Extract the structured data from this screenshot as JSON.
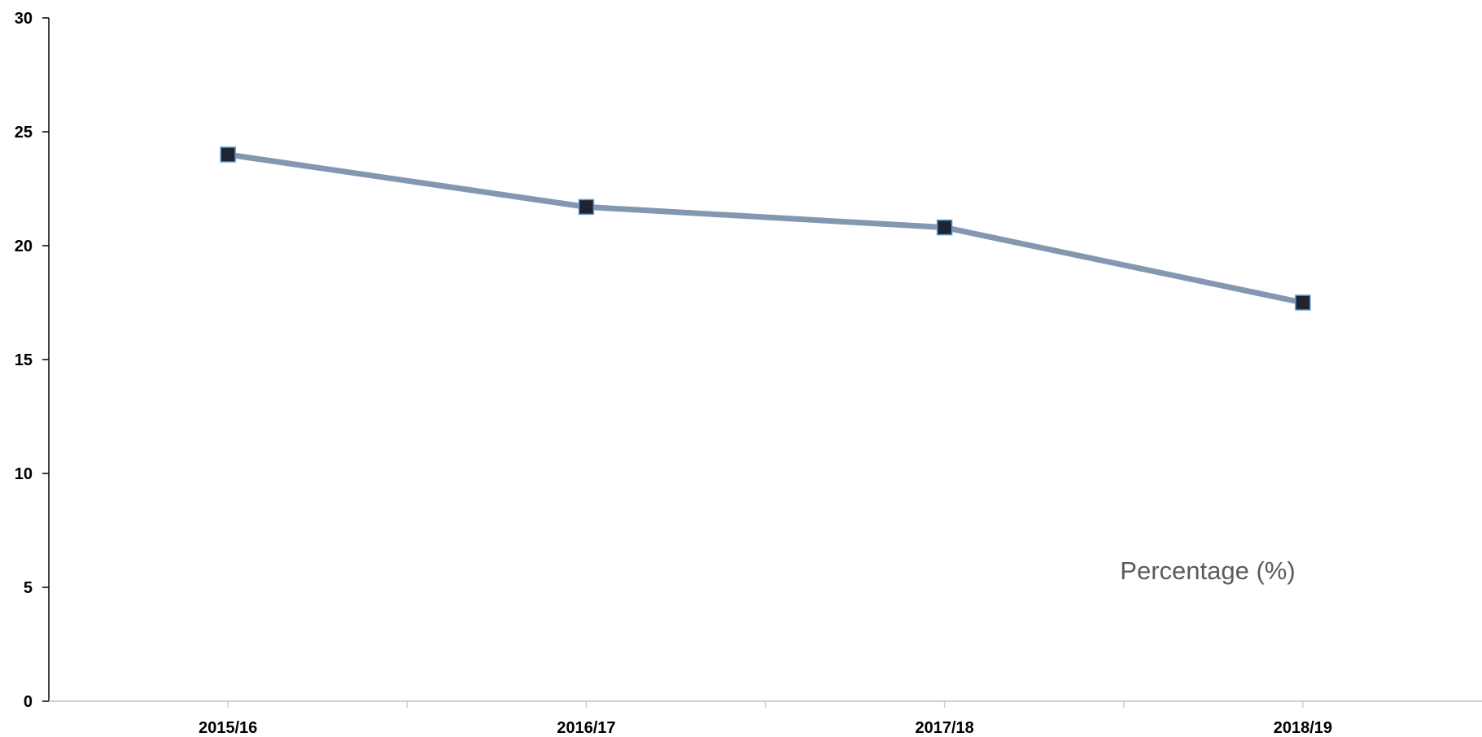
{
  "chart_data": {
    "type": "line",
    "categories": [
      "2015/16",
      "2016/17",
      "2017/18",
      "2018/19"
    ],
    "series": [
      {
        "name": "Percentage (%)",
        "values": [
          24.0,
          21.7,
          20.8,
          17.5
        ]
      }
    ],
    "title": "",
    "xlabel": "",
    "ylabel": "",
    "ylim": [
      0,
      30
    ],
    "yticks": [
      0,
      5,
      10,
      15,
      20,
      25,
      30
    ],
    "grid": false,
    "legend": "inside-bottom-right",
    "colors": {
      "line": "#8497b0",
      "marker_fill": "#1f2530",
      "marker_edge": "#5b9bd5",
      "axis": "#000000",
      "x_axis": "#d0d0d0"
    }
  }
}
